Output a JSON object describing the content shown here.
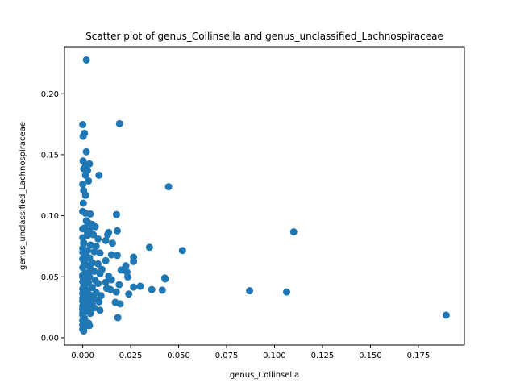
{
  "chart_data": {
    "type": "scatter",
    "title": "Scatter plot of genus_Collinsella and genus_unclassified_Lachnospiraceae",
    "xlabel": "genus_Collinsella",
    "ylabel": "genus_unclassified_Lachnospiraceae",
    "xlim": [
      -0.0095,
      0.199
    ],
    "ylim": [
      -0.006,
      0.2385
    ],
    "xticks": [
      0.0,
      0.025,
      0.05,
      0.075,
      0.1,
      0.125,
      0.15,
      0.175
    ],
    "xtick_labels": [
      "0.000",
      "0.025",
      "0.050",
      "0.075",
      "0.100",
      "0.125",
      "0.150",
      "0.175"
    ],
    "yticks": [
      0.0,
      0.05,
      0.1,
      0.15,
      0.2
    ],
    "ytick_labels": [
      "0.00",
      "0.05",
      "0.10",
      "0.15",
      "0.20"
    ],
    "grid": false,
    "color": "#1f77b4",
    "points": [
      [
        0.0019,
        0.2276
      ],
      [
        0.0192,
        0.1755
      ],
      [
        0.0,
        0.1747
      ],
      [
        0.0009,
        0.1676
      ],
      [
        0.0002,
        0.1651
      ],
      [
        0.0019,
        0.1524
      ],
      [
        0.0002,
        0.1449
      ],
      [
        0.0015,
        0.1412
      ],
      [
        0.0035,
        0.1425
      ],
      [
        0.0005,
        0.1385
      ],
      [
        0.0025,
        0.1371
      ],
      [
        0.0015,
        0.1332
      ],
      [
        0.0085,
        0.1332
      ],
      [
        0.003,
        0.1285
      ],
      [
        0.0,
        0.1257
      ],
      [
        0.0005,
        0.1206
      ],
      [
        0.0448,
        0.1238
      ],
      [
        0.0015,
        0.1168
      ],
      [
        0.0003,
        0.1103
      ],
      [
        0.0,
        0.1035
      ],
      [
        0.0015,
        0.1021
      ],
      [
        0.0039,
        0.1014
      ],
      [
        0.0176,
        0.101
      ],
      [
        0.0019,
        0.0959
      ],
      [
        0.003,
        0.0941
      ],
      [
        0.005,
        0.0929
      ],
      [
        0.0065,
        0.091
      ],
      [
        0.0,
        0.0892
      ],
      [
        0.0035,
        0.088
      ],
      [
        0.018,
        0.0876
      ],
      [
        0.0135,
        0.0863
      ],
      [
        0.11,
        0.0868
      ],
      [
        0.0025,
        0.084
      ],
      [
        0.0055,
        0.0845
      ],
      [
        0.013,
        0.0845
      ],
      [
        0.0,
        0.082
      ],
      [
        0.008,
        0.081
      ],
      [
        0.012,
        0.0797
      ],
      [
        0.0155,
        0.0775
      ],
      [
        0.0005,
        0.077
      ],
      [
        0.004,
        0.076
      ],
      [
        0.007,
        0.075
      ],
      [
        0.0348,
        0.0741
      ],
      [
        0.0,
        0.0733
      ],
      [
        0.0025,
        0.0715
      ],
      [
        0.052,
        0.0715
      ],
      [
        0.006,
        0.0705
      ],
      [
        0.009,
        0.0695
      ],
      [
        0.0015,
        0.068
      ],
      [
        0.015,
        0.068
      ],
      [
        0.018,
        0.0675
      ],
      [
        0.0265,
        0.066
      ],
      [
        0.0035,
        0.0655
      ],
      [
        0.0,
        0.0645
      ],
      [
        0.012,
        0.0632
      ],
      [
        0.0265,
        0.0625
      ],
      [
        0.005,
        0.0615
      ],
      [
        0.008,
        0.0605
      ],
      [
        0.002,
        0.0595
      ],
      [
        0.0225,
        0.059
      ],
      [
        0.0,
        0.0575
      ],
      [
        0.004,
        0.0565
      ],
      [
        0.01,
        0.056
      ],
      [
        0.02,
        0.0555
      ],
      [
        0.006,
        0.0545
      ],
      [
        0.023,
        0.054
      ],
      [
        0.0015,
        0.053
      ],
      [
        0.009,
        0.0525
      ],
      [
        0.0,
        0.0515
      ],
      [
        0.0135,
        0.0505
      ],
      [
        0.0035,
        0.05
      ],
      [
        0.0235,
        0.0498
      ],
      [
        0.0428,
        0.049
      ],
      [
        0.001,
        0.0485
      ],
      [
        0.043,
        0.0482
      ],
      [
        0.015,
        0.0475
      ],
      [
        0.0065,
        0.047
      ],
      [
        0.0,
        0.046
      ],
      [
        0.012,
        0.0455
      ],
      [
        0.003,
        0.045
      ],
      [
        0.008,
        0.0445
      ],
      [
        0.019,
        0.0435
      ],
      [
        0.001,
        0.043
      ],
      [
        0.03,
        0.0422
      ],
      [
        0.0265,
        0.0415
      ],
      [
        0.005,
        0.0412
      ],
      [
        0.0125,
        0.0405
      ],
      [
        0.0,
        0.04
      ],
      [
        0.036,
        0.0395
      ],
      [
        0.0145,
        0.0395
      ],
      [
        0.0415,
        0.039
      ],
      [
        0.0025,
        0.0388
      ],
      [
        0.087,
        0.0385
      ],
      [
        0.1063,
        0.0375
      ],
      [
        0.0175,
        0.0375
      ],
      [
        0.007,
        0.037
      ],
      [
        0.0,
        0.0362
      ],
      [
        0.024,
        0.0358
      ],
      [
        0.004,
        0.035
      ],
      [
        0.0095,
        0.0345
      ],
      [
        0.0015,
        0.0338
      ],
      [
        0.0,
        0.0325
      ],
      [
        0.006,
        0.032
      ],
      [
        0.003,
        0.031
      ],
      [
        0.0,
        0.03
      ],
      [
        0.0085,
        0.0295
      ],
      [
        0.017,
        0.029
      ],
      [
        0.0015,
        0.0285
      ],
      [
        0.0195,
        0.0278
      ],
      [
        0.005,
        0.027
      ],
      [
        0.0,
        0.026
      ],
      [
        0.003,
        0.025
      ],
      [
        0.006,
        0.0245
      ],
      [
        0.0,
        0.0235
      ],
      [
        0.009,
        0.0225
      ],
      [
        0.002,
        0.022
      ],
      [
        0.0,
        0.0205
      ],
      [
        0.004,
        0.02
      ],
      [
        0.1895,
        0.0185
      ],
      [
        0.0,
        0.0185
      ],
      [
        0.0183,
        0.0165
      ],
      [
        0.001,
        0.016
      ],
      [
        0.0,
        0.014
      ],
      [
        0.003,
        0.012
      ],
      [
        0.0,
        0.0105
      ],
      [
        0.0035,
        0.01
      ],
      [
        0.001,
        0.009
      ],
      [
        0.0,
        0.007
      ],
      [
        0.0005,
        0.0055
      ],
      [
        0.002,
        0.0285
      ],
      [
        0.0045,
        0.055
      ],
      [
        0.001,
        0.062
      ],
      [
        0.0005,
        0.078
      ],
      [
        0.0025,
        0.086
      ],
      [
        0.001,
        0.09
      ],
      [
        0.0,
        0.05
      ],
      [
        0.0005,
        0.042
      ],
      [
        0.0015,
        0.038
      ],
      [
        0.0,
        0.07
      ],
      [
        0.0012,
        0.065
      ]
    ]
  }
}
